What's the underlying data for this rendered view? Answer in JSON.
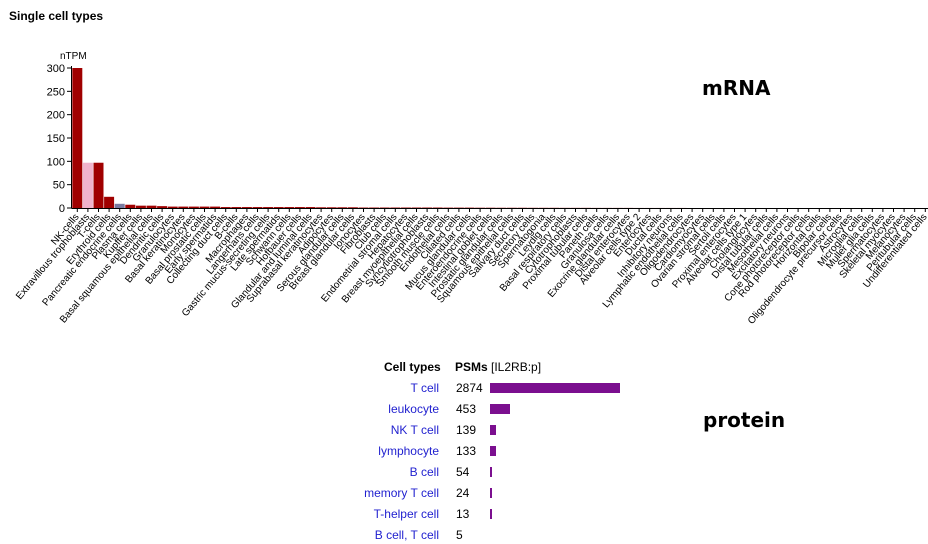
{
  "page": {
    "title": "Single cell types",
    "mrna_label": "mRNA",
    "protein_label": "protein"
  },
  "chart_data": [
    {
      "type": "bar",
      "title": "",
      "ylabel": "nTPM",
      "ylim": [
        0,
        300
      ],
      "yticks": [
        0,
        50,
        100,
        150,
        200,
        250,
        300
      ],
      "colors": {
        "red": "#a00000",
        "pink": "#f0b3cc",
        "slate": "#7a7aa0"
      },
      "categories": [
        "NK-cells",
        "Extravillous trophoblasts",
        "T-cells",
        "Erythroid cells",
        "Pancreatic endocrine cells",
        "Plasma cells",
        "Kupffer cells",
        "Basal squamous epithelial cells",
        "Dendritic cells",
        "Granulocytes",
        "Basal keratinocytes",
        "Monocytes",
        "Basal prostatic cells",
        "Early spermatids",
        "Collecting duct cells",
        "B-cells",
        "Macrophages",
        "Langerhans cells",
        "Gastric mucus-secreting cells",
        "Late spermatids",
        "Schwann cells",
        "Hofbauer cells",
        "Glandular and luminal cells",
        "Suprabasal keratinocytes",
        "Adipocytes",
        "Serous glandular cells",
        "Breast glandular cells",
        "Ionocytes",
        "Fibroblasts",
        "Club cells",
        "Endometrial stromal cells",
        "Hepatocytes",
        "Breast myoepithelial cells",
        "Syncytiotrophoblasts",
        "Smooth muscle cells",
        "Endothelial cells",
        "Ciliated cells",
        "Mucus glandular cells",
        "Enteroendocrine cells",
        "Intestinal goblet cells",
        "Prostatic glandular cells",
        "Squamous epithelial cells",
        "Salivary duct cells",
        "Secretory cells",
        "Spermatogonia",
        "Leydig cells",
        "Basal respiratory cells",
        "Cytotrophoblasts",
        "Proximal tubular cells",
        "Paneth cells",
        "Granulosa cells",
        "Exocrine glandular cells",
        "Distal enterocytes",
        "Alveolar cells type 2",
        "Enterocytes",
        "Ductal cells",
        "Inhibitory neurons",
        "Lymphatic endothelial cells",
        "Oligodendrocytes",
        "Cardiomyocytes",
        "Ovarian stromal cells",
        "Sertoli cells",
        "Proximal enterocytes",
        "Alveolar cells type 1",
        "Cholangiocytes",
        "Distal tubular cells",
        "Mesothelial cells",
        "Excitatory neurons",
        "Cone photoreceptor cells",
        "Rod photoreceptor cells",
        "Horizontal cells",
        "Bipolar cells",
        "Oligodendrocyte precursor cells",
        "Astrocytes",
        "Microglial cells",
        "Muller glia cells",
        "Spermatocytes",
        "Skeletal myocytes",
        "Melanocytes",
        "Peritubular cells",
        "Undifferentiated cells"
      ],
      "values": [
        300,
        97,
        97,
        24,
        9,
        7,
        5,
        5,
        4,
        3,
        3,
        3,
        3,
        3,
        2,
        2,
        2,
        2,
        2,
        2,
        2,
        2,
        2,
        1.5,
        1.5,
        1.5,
        1.5,
        1,
        1,
        1,
        1,
        1,
        1,
        1,
        1,
        0.8,
        0.8,
        0.8,
        0.6,
        0.6,
        0.5,
        0.5,
        0.5,
        0.4,
        0.4,
        0.4,
        0.3,
        0.3,
        0.3,
        0.2,
        0.2,
        0.2,
        0.2,
        0.1,
        0.1,
        0.1,
        0.1,
        0.1,
        0,
        0,
        0,
        0,
        0,
        0,
        0,
        0,
        0,
        0,
        0,
        0,
        0,
        0,
        0,
        0,
        0,
        0,
        0,
        0,
        0,
        0,
        0
      ],
      "bar_colors": [
        "red",
        "pink",
        "red",
        "red",
        "slate",
        "red",
        "red",
        "red",
        "red",
        "red",
        "red",
        "red",
        "red",
        "red",
        "red",
        "red",
        "red",
        "red",
        "red",
        "red",
        "red",
        "red",
        "red",
        "red",
        "red",
        "red",
        "red",
        "red",
        "red",
        "red",
        "red",
        "red",
        "red",
        "red",
        "red",
        "red",
        "red",
        "red",
        "red",
        "red",
        "red",
        "red",
        "red",
        "red",
        "red",
        "red",
        "red",
        "red",
        "red",
        "red",
        "red",
        "red",
        "red",
        "red",
        "red",
        "red",
        "red",
        "red",
        "red",
        "red",
        "red",
        "red",
        "red",
        "red",
        "red",
        "red",
        "red",
        "red",
        "red",
        "red",
        "red",
        "red",
        "red",
        "red",
        "red",
        "red",
        "red",
        "red",
        "red",
        "red",
        "red"
      ]
    },
    {
      "type": "bar",
      "orientation": "horizontal",
      "title": "",
      "col_header_celltype": "Cell types",
      "col_header_psm": "PSMs",
      "col_header_psm_sub": "[IL2RB:p]",
      "bar_color": "#7b0f8f",
      "max_value": 2874,
      "categories": [
        "T cell",
        "leukocyte",
        "NK T cell",
        "lymphocyte",
        "B cell",
        "memory T cell",
        "T-helper cell",
        "B cell, T cell"
      ],
      "values": [
        2874,
        453,
        139,
        133,
        54,
        24,
        13,
        5
      ]
    }
  ]
}
